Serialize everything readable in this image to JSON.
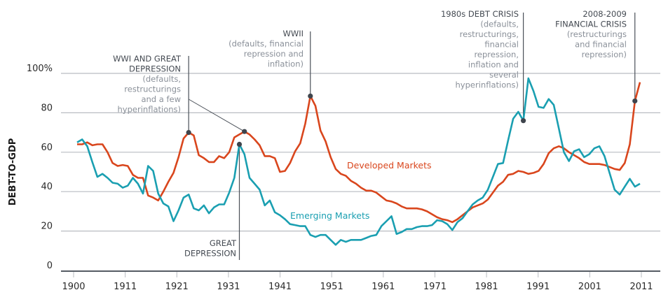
{
  "chart_data": {
    "type": "line",
    "title": "",
    "xlabel": "",
    "ylabel": "DEBT-TO-GDP",
    "ylim": [
      0,
      100
    ],
    "y_ticks": [
      "0",
      "20",
      "40",
      "60",
      "80",
      "100%"
    ],
    "y_tick_values": [
      0,
      20,
      40,
      60,
      80,
      100
    ],
    "x_tick_labels": [
      "1900",
      "1911",
      "1921",
      "1931",
      "1941",
      "1951",
      "1961",
      "1971",
      "1981",
      "1991",
      "2001",
      "2011"
    ],
    "grid": true,
    "x_start": 1900,
    "x_end": 2011,
    "series": [
      {
        "name": "Developed Markets",
        "color": "#d9461d",
        "values": [
          64,
          64,
          65,
          63.5,
          64,
          64,
          60,
          54.5,
          53,
          53.5,
          53,
          48.5,
          47,
          47,
          38,
          37,
          35.5,
          40,
          45,
          49.5,
          57.5,
          67,
          70,
          68.5,
          58.5,
          57,
          55,
          55,
          58,
          57,
          60,
          67.5,
          69,
          70.5,
          69,
          66.5,
          63.5,
          58,
          58,
          57,
          50,
          50.5,
          54.5,
          60.5,
          64.5,
          74.5,
          88.5,
          83.5,
          71,
          65.5,
          57.5,
          51.5,
          49,
          48,
          45.5,
          44,
          42,
          40.5,
          40.5,
          39.5,
          37.5,
          35.5,
          35,
          34,
          32.5,
          31.5,
          31.5,
          31.5,
          31,
          30,
          28.5,
          27,
          26,
          25.5,
          24.5,
          26,
          28,
          30,
          32,
          33,
          34,
          36,
          39.5,
          43,
          45,
          48.5,
          49,
          50.5,
          50,
          49,
          49.5,
          50.5,
          54,
          59.5,
          62,
          63,
          62,
          60,
          58.5,
          57,
          55,
          54,
          54,
          54,
          53.5,
          52.5,
          51.5,
          51,
          54.5,
          64,
          86,
          95.5
        ]
      },
      {
        "name": "Emerging Markets",
        "color": "#1a9fb1",
        "values": [
          65,
          66.5,
          63,
          55,
          47.5,
          49,
          47,
          44.5,
          44,
          42,
          43,
          47,
          44,
          39,
          53,
          50.5,
          39,
          34,
          32.5,
          25,
          30.5,
          37,
          38.5,
          31.5,
          30.5,
          33,
          29,
          32,
          33.5,
          33.5,
          39.5,
          47,
          64,
          59,
          47,
          44,
          41,
          33,
          35.5,
          29.5,
          28,
          26,
          23.5,
          23,
          22.5,
          22.5,
          18,
          17,
          18,
          18,
          15.5,
          13,
          15.5,
          14.5,
          15.5,
          15.5,
          15.5,
          16.5,
          17.5,
          18,
          22.5,
          25,
          27.5,
          18.5,
          19.5,
          21,
          21,
          22,
          22.5,
          22.5,
          23,
          25.5,
          25,
          23.5,
          20.5,
          24.5,
          26.5,
          30,
          33.5,
          35.5,
          37,
          41,
          47.5,
          54,
          54.5,
          66,
          77,
          80.5,
          76,
          97.5,
          91,
          83,
          82.5,
          87,
          84,
          72,
          60,
          55.5,
          60.5,
          61.5,
          57.5,
          59,
          62,
          63,
          58,
          49.5,
          41,
          38.5,
          42.5,
          46.5,
          42.5,
          44
        ]
      }
    ],
    "series_labels": [
      "Developed Markets",
      "Emerging Markets"
    ],
    "annotations": [
      {
        "id": "wwi",
        "title_lines": [
          "WWI AND GREAT",
          "DEPRESSION"
        ],
        "body_lines": [
          "(defaults,",
          "restructurings",
          "and a few",
          "hyperinflations)"
        ],
        "markers": [
          {
            "index": 22,
            "series": 0
          },
          {
            "index": 33,
            "series": 0
          }
        ]
      },
      {
        "id": "wwii",
        "title_lines": [
          "WWII"
        ],
        "body_lines": [
          "(defaults, financial",
          "repression and",
          "inflation)"
        ],
        "markers": [
          {
            "index": 46,
            "series": 0
          }
        ]
      },
      {
        "id": "great-depression",
        "title_lines": [
          "GREAT",
          "DEPRESSION"
        ],
        "body_lines": [],
        "markers": [
          {
            "index": 32,
            "series": 1
          }
        ]
      },
      {
        "id": "debt-crisis-1980s",
        "title_lines": [
          "1980s DEBT CRISIS"
        ],
        "body_lines": [
          "(defaults,",
          "restructurings,",
          "financial",
          "repression,",
          "inflation and",
          "several",
          "hyperinflations)"
        ],
        "markers": [
          {
            "index": 88,
            "series": 1
          }
        ]
      },
      {
        "id": "financial-crisis-2008",
        "title_lines": [
          "2008-2009",
          "FINANCIAL CRISIS"
        ],
        "body_lines": [
          "(restructurings",
          "and financial",
          "repression)"
        ],
        "markers": [
          {
            "index": 110,
            "series": 0
          }
        ]
      }
    ]
  }
}
